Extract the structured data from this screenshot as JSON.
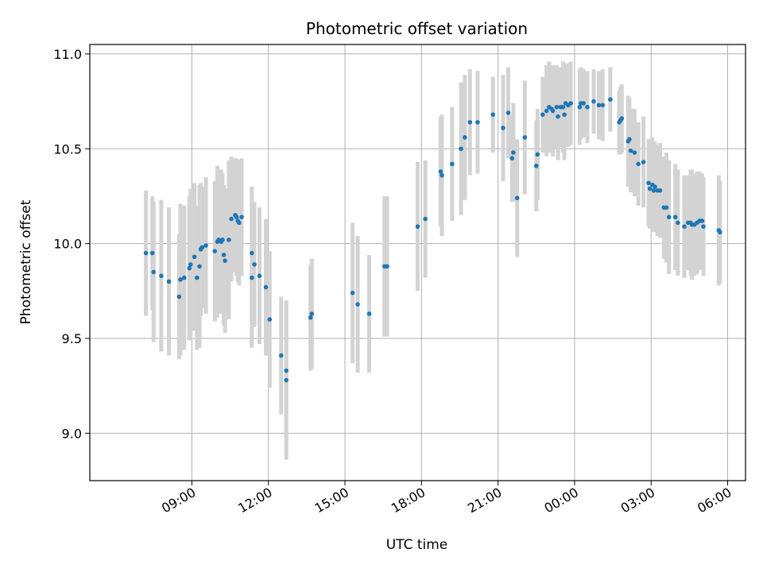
{
  "chart_data": {
    "type": "scatter",
    "title": "Photometric offset variation",
    "xlabel": "UTC time",
    "ylabel": "Photometric offset",
    "x_unit": "hours since 00:00 of first day",
    "xlim": [
      5.0,
      30.7
    ],
    "ylim": [
      8.75,
      11.05
    ],
    "x_ticks": [
      {
        "value": 9,
        "label": "09:00"
      },
      {
        "value": 12,
        "label": "12:00"
      },
      {
        "value": 15,
        "label": "15:00"
      },
      {
        "value": 18,
        "label": "18:00"
      },
      {
        "value": 21,
        "label": "21:00"
      },
      {
        "value": 24,
        "label": "00:00"
      },
      {
        "value": 27,
        "label": "03:00"
      },
      {
        "value": 30,
        "label": "06:00"
      }
    ],
    "y_ticks": [
      {
        "value": 9.0,
        "label": "9.0"
      },
      {
        "value": 9.5,
        "label": "9.5"
      },
      {
        "value": 10.0,
        "label": "10.0"
      },
      {
        "value": 10.5,
        "label": "10.5"
      },
      {
        "value": 11.0,
        "label": "11.0"
      }
    ],
    "grid": true,
    "point_color": "#1f77b4",
    "errorbar_color": "#d3d3d3",
    "series": [
      {
        "name": "offset",
        "points": [
          [
            7.2,
            9.95,
            0.33
          ],
          [
            7.45,
            9.95,
            0.3
          ],
          [
            7.5,
            9.85,
            0.37
          ],
          [
            7.8,
            9.83,
            0.4
          ],
          [
            8.1,
            9.8,
            0.39
          ],
          [
            8.5,
            9.72,
            0.33
          ],
          [
            8.55,
            9.81,
            0.4
          ],
          [
            8.7,
            9.82,
            0.38
          ],
          [
            8.9,
            9.87,
            0.38
          ],
          [
            8.95,
            9.89,
            0.4
          ],
          [
            9.1,
            9.93,
            0.39
          ],
          [
            9.2,
            9.82,
            0.38
          ],
          [
            9.3,
            9.88,
            0.43
          ],
          [
            9.35,
            9.97,
            0.35
          ],
          [
            9.4,
            9.98,
            0.32
          ],
          [
            9.55,
            9.99,
            0.36
          ],
          [
            9.9,
            9.96,
            0.37
          ],
          [
            10.0,
            10.01,
            0.4
          ],
          [
            10.05,
            10.02,
            0.36
          ],
          [
            10.15,
            10.01,
            0.38
          ],
          [
            10.2,
            10.02,
            0.35
          ],
          [
            10.25,
            9.94,
            0.37
          ],
          [
            10.3,
            9.91,
            0.38
          ],
          [
            10.45,
            10.02,
            0.42
          ],
          [
            10.55,
            10.13,
            0.33
          ],
          [
            10.7,
            10.15,
            0.3
          ],
          [
            10.75,
            10.14,
            0.31
          ],
          [
            10.8,
            10.12,
            0.32
          ],
          [
            10.85,
            10.11,
            0.33
          ],
          [
            10.95,
            10.14,
            0.31
          ],
          [
            11.35,
            9.82,
            0.37
          ],
          [
            11.35,
            9.95,
            0.35
          ],
          [
            11.45,
            9.89,
            0.33
          ],
          [
            11.65,
            9.83,
            0.36
          ],
          [
            11.9,
            9.77,
            0.36
          ],
          [
            12.05,
            9.6,
            0.36
          ],
          [
            12.5,
            9.41,
            0.31
          ],
          [
            12.7,
            9.33,
            0.37
          ],
          [
            12.7,
            9.28,
            0.42
          ],
          [
            13.65,
            9.61,
            0.28
          ],
          [
            13.7,
            9.63,
            0.29
          ],
          [
            15.3,
            9.74,
            0.37
          ],
          [
            15.5,
            9.68,
            0.36
          ],
          [
            15.95,
            9.63,
            0.31
          ],
          [
            16.55,
            9.88,
            0.37
          ],
          [
            16.65,
            9.88,
            0.37
          ],
          [
            17.85,
            10.09,
            0.34
          ],
          [
            18.15,
            10.13,
            0.31
          ],
          [
            18.75,
            10.38,
            0.29
          ],
          [
            18.8,
            10.36,
            0.32
          ],
          [
            19.2,
            10.42,
            0.3
          ],
          [
            19.55,
            10.5,
            0.35
          ],
          [
            19.7,
            10.56,
            0.33
          ],
          [
            19.9,
            10.64,
            0.28
          ],
          [
            20.2,
            10.64,
            0.27
          ],
          [
            20.8,
            10.68,
            0.2
          ],
          [
            21.2,
            10.61,
            0.28
          ],
          [
            21.4,
            10.69,
            0.24
          ],
          [
            21.55,
            10.45,
            0.23
          ],
          [
            21.6,
            10.48,
            0.26
          ],
          [
            21.75,
            10.24,
            0.31
          ],
          [
            22.05,
            10.56,
            0.3
          ],
          [
            22.5,
            10.41,
            0.24
          ],
          [
            22.55,
            10.47,
            0.24
          ],
          [
            22.75,
            10.68,
            0.2
          ],
          [
            22.9,
            10.7,
            0.24
          ],
          [
            23.0,
            10.72,
            0.24
          ],
          [
            23.1,
            10.71,
            0.23
          ],
          [
            23.15,
            10.7,
            0.24
          ],
          [
            23.3,
            10.72,
            0.22
          ],
          [
            23.35,
            10.67,
            0.23
          ],
          [
            23.45,
            10.72,
            0.21
          ],
          [
            23.55,
            10.72,
            0.24
          ],
          [
            23.6,
            10.68,
            0.24
          ],
          [
            23.65,
            10.74,
            0.21
          ],
          [
            23.75,
            10.73,
            0.22
          ],
          [
            23.85,
            10.74,
            0.22
          ],
          [
            24.2,
            10.72,
            0.2
          ],
          [
            24.25,
            10.74,
            0.19
          ],
          [
            24.35,
            10.74,
            0.18
          ],
          [
            24.5,
            10.72,
            0.19
          ],
          [
            24.75,
            10.75,
            0.17
          ],
          [
            24.95,
            10.73,
            0.18
          ],
          [
            25.1,
            10.73,
            0.19
          ],
          [
            25.4,
            10.76,
            0.17
          ],
          [
            25.75,
            10.64,
            0.17
          ],
          [
            25.8,
            10.65,
            0.18
          ],
          [
            25.85,
            10.66,
            0.18
          ],
          [
            26.1,
            10.54,
            0.24
          ],
          [
            26.15,
            10.55,
            0.22
          ],
          [
            26.2,
            10.49,
            0.22
          ],
          [
            26.35,
            10.48,
            0.23
          ],
          [
            26.5,
            10.42,
            0.22
          ],
          [
            26.7,
            10.43,
            0.24
          ],
          [
            26.9,
            10.32,
            0.23
          ],
          [
            26.95,
            10.29,
            0.21
          ],
          [
            27.05,
            10.31,
            0.25
          ],
          [
            27.1,
            10.28,
            0.22
          ],
          [
            27.15,
            10.3,
            0.24
          ],
          [
            27.25,
            10.28,
            0.24
          ],
          [
            27.35,
            10.28,
            0.25
          ],
          [
            27.5,
            10.19,
            0.27
          ],
          [
            27.6,
            10.19,
            0.29
          ],
          [
            27.7,
            10.14,
            0.3
          ],
          [
            27.95,
            10.14,
            0.28
          ],
          [
            28.05,
            10.11,
            0.28
          ],
          [
            28.3,
            10.09,
            0.27
          ],
          [
            28.45,
            10.11,
            0.25
          ],
          [
            28.55,
            10.11,
            0.28
          ],
          [
            28.6,
            10.1,
            0.29
          ],
          [
            28.7,
            10.1,
            0.27
          ],
          [
            28.8,
            10.11,
            0.27
          ],
          [
            28.9,
            10.12,
            0.26
          ],
          [
            29.0,
            10.12,
            0.25
          ],
          [
            29.05,
            10.09,
            0.26
          ],
          [
            29.65,
            10.07,
            0.29
          ],
          [
            29.7,
            10.06,
            0.27
          ]
        ]
      }
    ]
  }
}
